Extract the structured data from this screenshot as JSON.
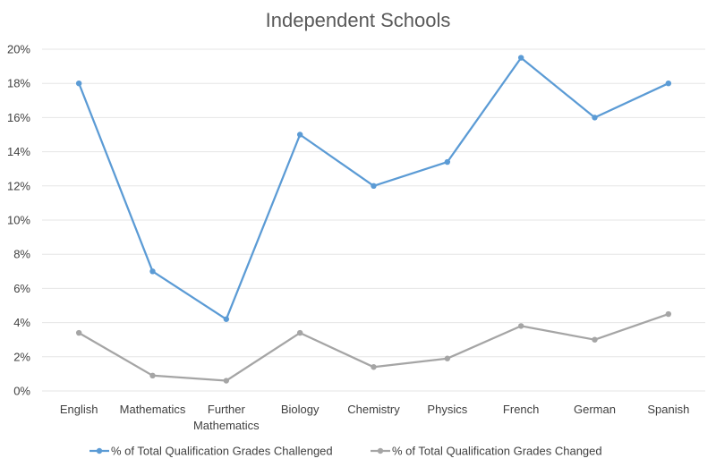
{
  "chart_data": {
    "type": "line",
    "title": "Independent Schools",
    "categories": [
      "English",
      "Mathematics",
      "Further Mathematics",
      "Biology",
      "Chemistry",
      "Physics",
      "French",
      "German",
      "Spanish"
    ],
    "series": [
      {
        "name": "% of Total Qualification Grades Challenged",
        "color": "#5b9bd5",
        "values": [
          18.0,
          7.0,
          4.2,
          15.0,
          12.0,
          13.4,
          19.5,
          16.0,
          18.0
        ]
      },
      {
        "name": "% of Total Qualification Grades Changed",
        "color": "#a5a5a5",
        "values": [
          3.4,
          0.9,
          0.6,
          3.4,
          1.4,
          1.9,
          3.8,
          3.0,
          4.5
        ]
      }
    ],
    "ylim": [
      0,
      20
    ],
    "yticks": [
      "0%",
      "2%",
      "4%",
      "6%",
      "8%",
      "10%",
      "12%",
      "14%",
      "16%",
      "18%",
      "20%"
    ],
    "grid": true,
    "legend_position": "bottom"
  }
}
